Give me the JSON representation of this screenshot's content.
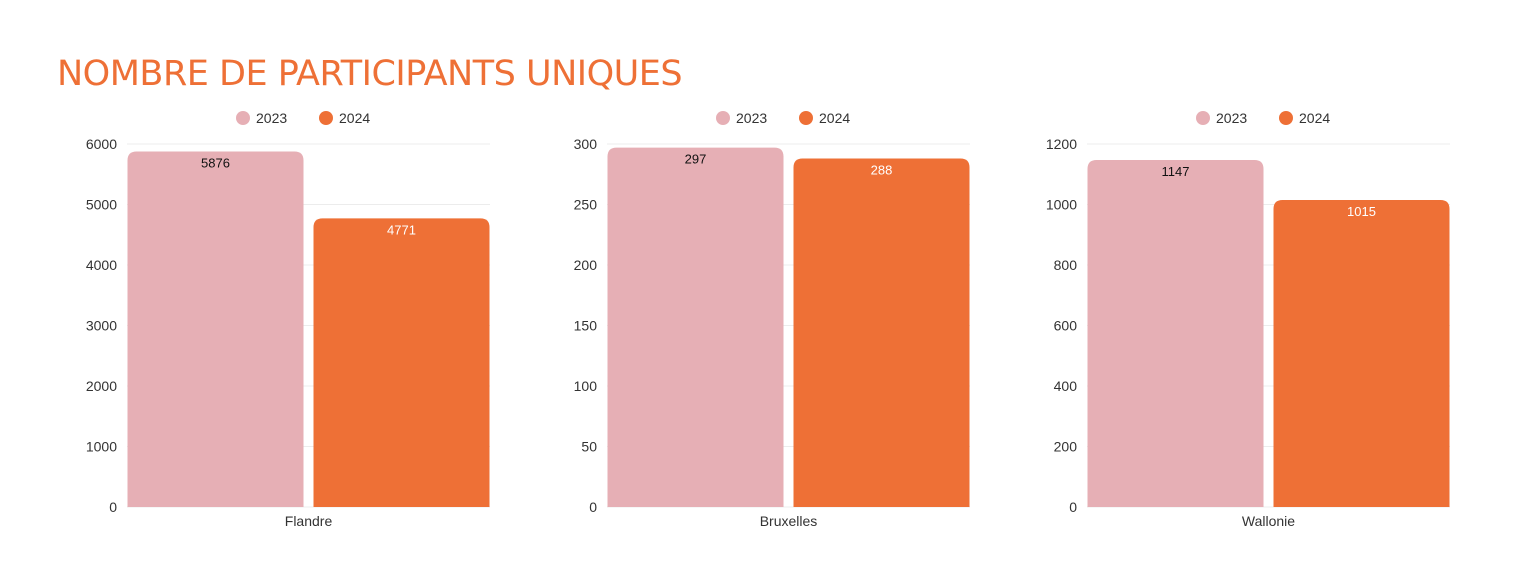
{
  "title": "NOMBRE DE PARTICIPANTS UNIQUES",
  "colors": {
    "title": "#ee7036",
    "2023": "#e6afb5",
    "2024": "#ee7036",
    "grid": "#ececec",
    "text": "#333333"
  },
  "chart_data": [
    {
      "type": "bar",
      "categories": [
        "Flandre"
      ],
      "series": [
        {
          "name": "2023",
          "values": [
            5876
          ]
        },
        {
          "name": "2024",
          "values": [
            4771
          ]
        }
      ],
      "ylim": [
        0,
        6000
      ],
      "yticks": [
        "0",
        "1000",
        "2000",
        "3000",
        "4000",
        "5000",
        "6000"
      ],
      "data_labels": [
        "5876",
        "4771"
      ],
      "legend": "top-center",
      "grid": true
    },
    {
      "type": "bar",
      "categories": [
        "Bruxelles"
      ],
      "series": [
        {
          "name": "2023",
          "values": [
            297
          ]
        },
        {
          "name": "2024",
          "values": [
            288
          ]
        }
      ],
      "ylim": [
        0,
        300
      ],
      "yticks": [
        "0",
        "50",
        "100",
        "150",
        "200",
        "250",
        "300"
      ],
      "data_labels": [
        "297",
        "288"
      ],
      "legend": "top-center",
      "grid": true
    },
    {
      "type": "bar",
      "categories": [
        "Wallonie"
      ],
      "series": [
        {
          "name": "2023",
          "values": [
            1147
          ]
        },
        {
          "name": "2024",
          "values": [
            1015
          ]
        }
      ],
      "ylim": [
        0,
        1200
      ],
      "yticks": [
        "0",
        "200",
        "400",
        "600",
        "800",
        "1000",
        "1200"
      ],
      "data_labels": [
        "1147",
        "1015"
      ],
      "legend": "top-center",
      "grid": true
    }
  ]
}
